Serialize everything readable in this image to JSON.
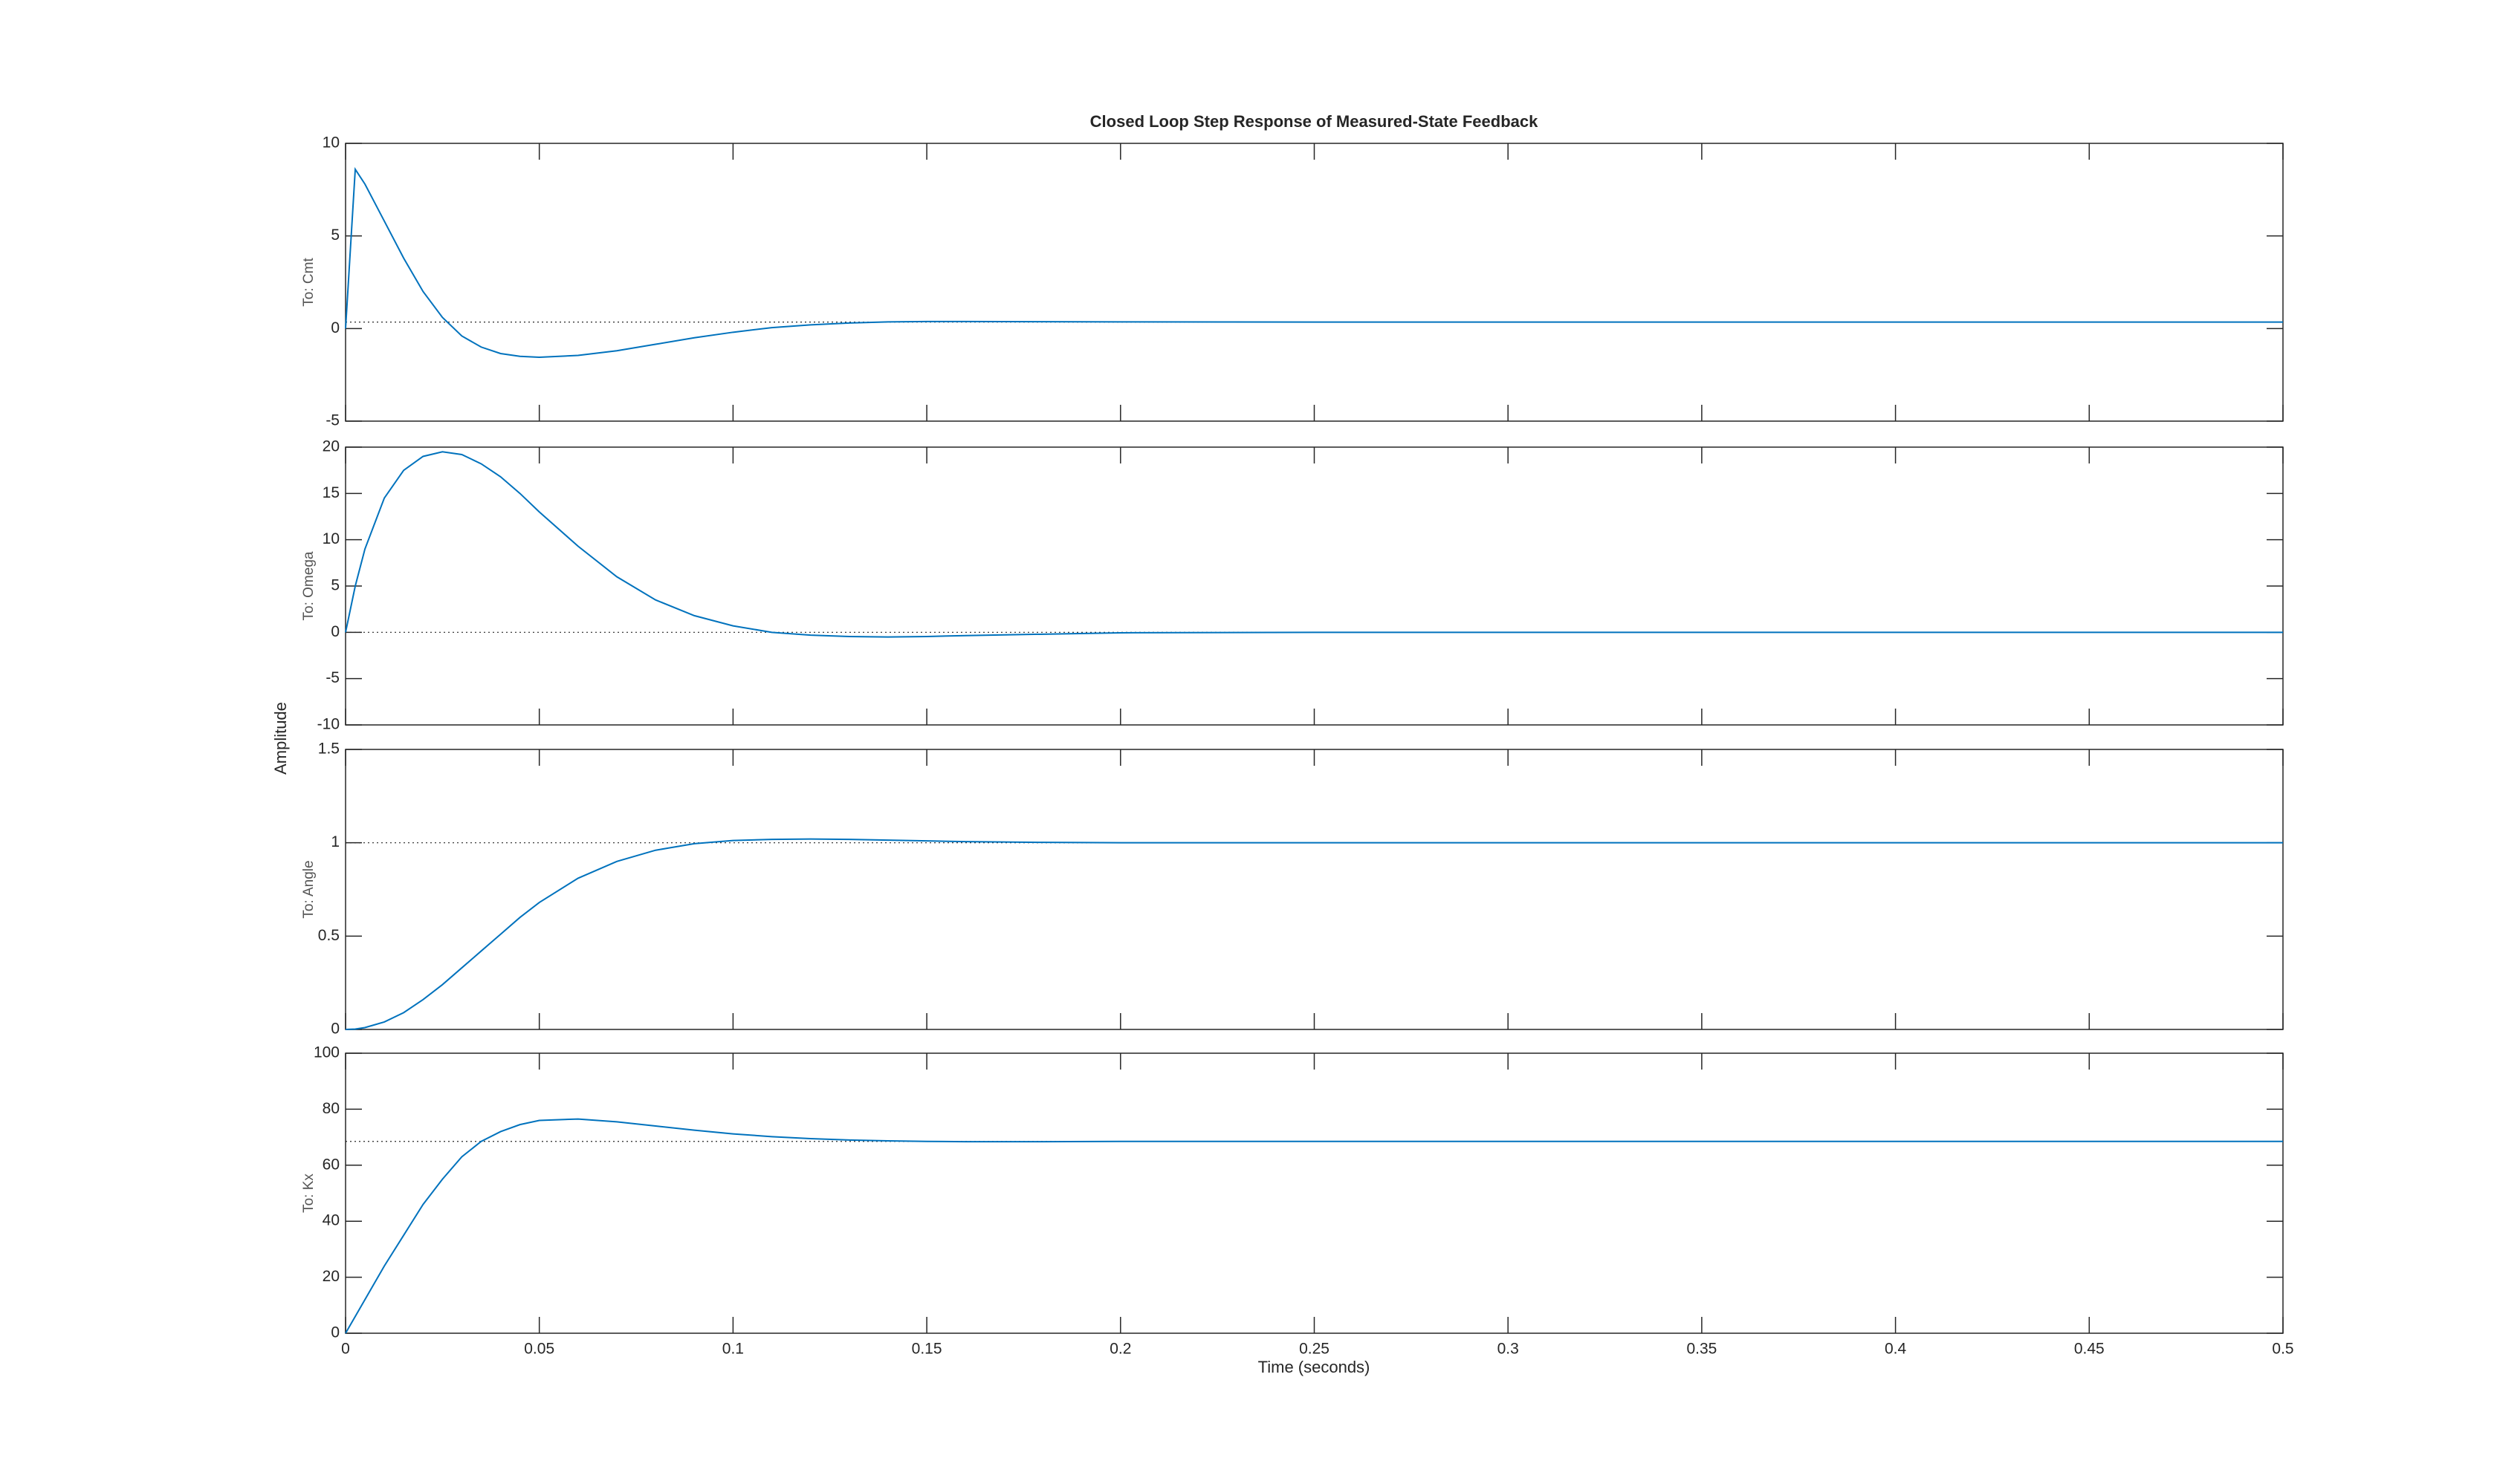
{
  "figure": {
    "title": "Closed Loop Step Response of Measured-State Feedback",
    "xlabel": "Time (seconds)",
    "ylabel": "Amplitude"
  },
  "chart_data": {
    "type": "line",
    "color": "#0072bd",
    "xlim": [
      0,
      0.5
    ],
    "xticks": [
      0,
      0.05,
      0.1,
      0.15,
      0.2,
      0.25,
      0.3,
      0.35,
      0.4,
      0.45,
      0.5
    ],
    "x": [
      0,
      0.0025,
      0.005,
      0.01,
      0.015,
      0.02,
      0.025,
      0.03,
      0.035,
      0.04,
      0.045,
      0.05,
      0.06,
      0.07,
      0.08,
      0.09,
      0.1,
      0.11,
      0.12,
      0.13,
      0.14,
      0.15,
      0.16,
      0.18,
      0.2,
      0.25,
      0.3,
      0.35,
      0.4,
      0.45,
      0.5
    ],
    "subplots": [
      {
        "ylabel": "To: Cmt",
        "ylim": [
          -5,
          10
        ],
        "yticks": [
          -5,
          0,
          5,
          10
        ],
        "steady_state": 0.35,
        "values": [
          0,
          8.6,
          7.8,
          5.8,
          3.8,
          2.0,
          0.6,
          -0.4,
          -1.0,
          -1.35,
          -1.5,
          -1.55,
          -1.45,
          -1.2,
          -0.85,
          -0.5,
          -0.2,
          0.05,
          0.2,
          0.3,
          0.36,
          0.38,
          0.38,
          0.37,
          0.36,
          0.35,
          0.35,
          0.35,
          0.35,
          0.35,
          0.35
        ]
      },
      {
        "ylabel": "To: Omega",
        "ylim": [
          -10,
          20
        ],
        "yticks": [
          -10,
          -5,
          0,
          5,
          10,
          15,
          20
        ],
        "steady_state": 0,
        "values": [
          0,
          5,
          9,
          14.5,
          17.5,
          19,
          19.5,
          19.2,
          18.2,
          16.8,
          15,
          13,
          9.3,
          6,
          3.5,
          1.8,
          0.7,
          0,
          -0.3,
          -0.45,
          -0.5,
          -0.45,
          -0.35,
          -0.2,
          -0.05,
          0,
          0,
          0,
          0,
          0,
          0
        ]
      },
      {
        "ylabel": "To: Angle",
        "ylim": [
          0,
          1.5
        ],
        "yticks": [
          0,
          0.5,
          1,
          1.5
        ],
        "steady_state": 1,
        "values": [
          0,
          0.002,
          0.01,
          0.04,
          0.09,
          0.16,
          0.24,
          0.33,
          0.42,
          0.51,
          0.6,
          0.68,
          0.81,
          0.9,
          0.96,
          0.995,
          1.012,
          1.018,
          1.02,
          1.018,
          1.014,
          1.01,
          1.006,
          1.002,
          1,
          1,
          1,
          1,
          1,
          1,
          1
        ]
      },
      {
        "ylabel": "To: Kx",
        "ylim": [
          0,
          100
        ],
        "yticks": [
          0,
          20,
          40,
          60,
          80,
          100
        ],
        "steady_state": 68.5,
        "values": [
          0,
          6,
          12,
          24,
          35,
          46,
          55,
          63,
          68.5,
          72,
          74.5,
          76,
          76.5,
          75.5,
          74,
          72.5,
          71.2,
          70.2,
          69.5,
          69,
          68.7,
          68.5,
          68.4,
          68.4,
          68.5,
          68.5,
          68.5,
          68.5,
          68.5,
          68.5,
          68.5
        ]
      }
    ]
  }
}
